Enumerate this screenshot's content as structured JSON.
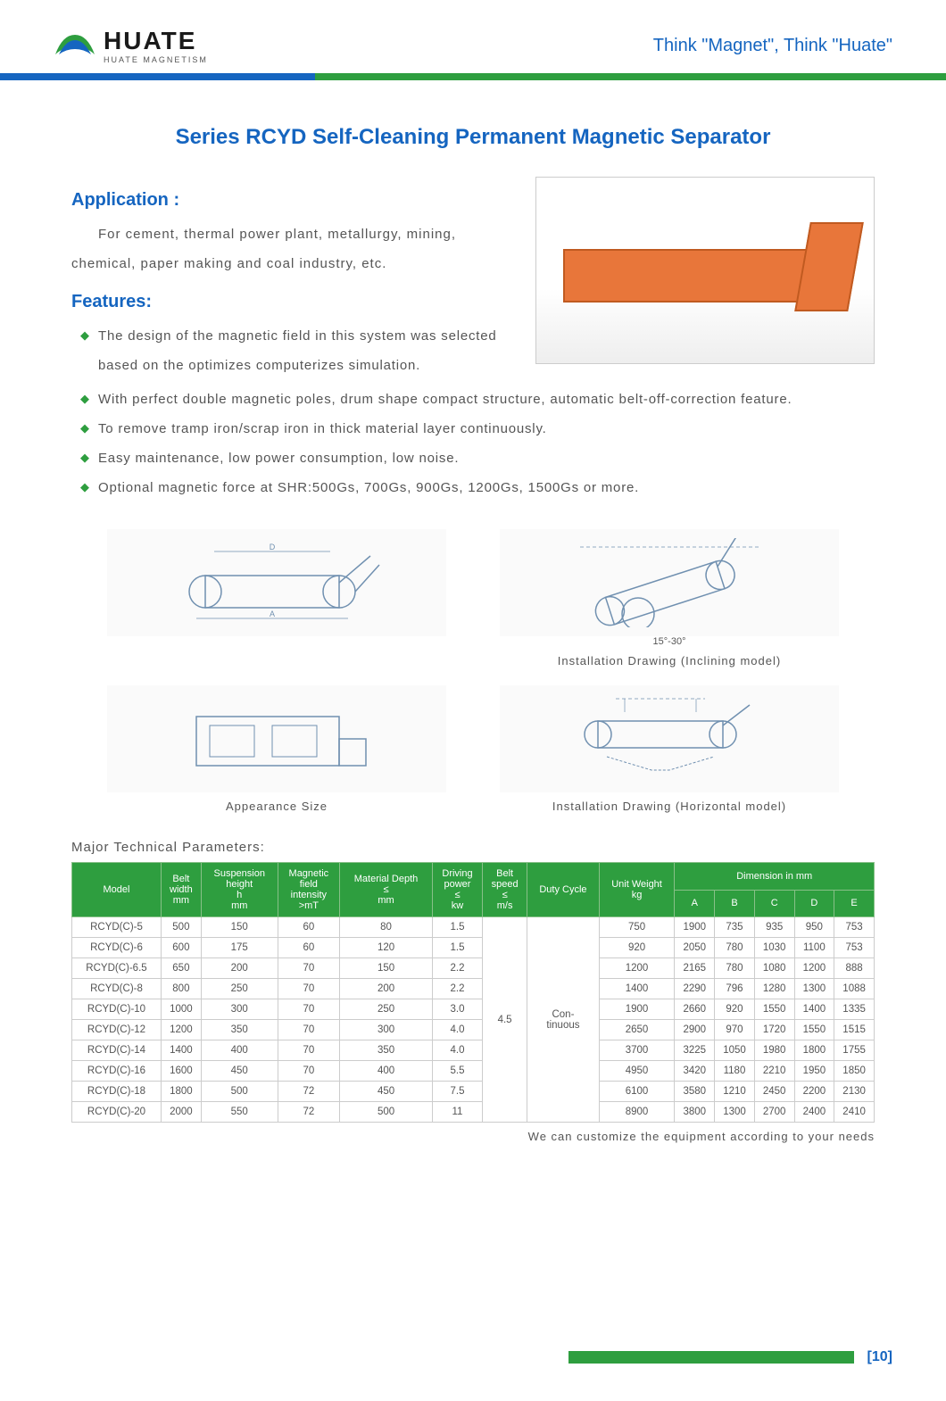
{
  "header": {
    "logo_main": "HUATE",
    "logo_sub": "HUATE MAGNETISM",
    "slogan_prefix": "Think",
    "slogan_word1": "\"Magnet\"",
    "slogan_mid": ", Think",
    "slogan_word2": "\"Huate\"",
    "bar_blue_color": "#1565c0",
    "bar_green_color": "#2e9e3f"
  },
  "page_title": "Series RCYD Self-Cleaning Permanent Magnetic Separator",
  "sections": {
    "application": {
      "heading": "Application :",
      "text": "For cement, thermal power plant, metallurgy, mining, chemical, paper making and coal industry, etc."
    },
    "features": {
      "heading": "Features:",
      "items": [
        "The design of the magnetic field in this system was selected based on the optimizes computerizes simulation.",
        "With perfect double magnetic poles, drum shape compact structure, automatic belt-off-correction feature.",
        "To remove tramp iron/scrap iron in thick material layer continuously.",
        "Easy maintenance, low power consumption, low noise.",
        "Optional magnetic force at SHR:500Gs, 700Gs, 900Gs, 1200Gs, 1500Gs or more."
      ]
    }
  },
  "diagrams": {
    "d1_caption": "",
    "d2_angle": "15°-30°",
    "d2_caption": "Installation Drawing (Inclining model)",
    "d3_caption": "Appearance Size",
    "d4_caption": "Installation Drawing (Horizontal model)"
  },
  "table": {
    "title": "Major Technical Parameters:",
    "header_bg": "#2e9e3f",
    "columns_top": [
      "Model",
      "Belt width mm",
      "Suspension height h mm",
      "Magnetic field intensity >mT",
      "Material Depth ≤ mm",
      "Driving power ≤ kw",
      "Belt speed ≤ m/s",
      "Duty Cycle",
      "Unit Weight kg",
      "Dimension in mm"
    ],
    "dim_cols": [
      "A",
      "B",
      "C",
      "D",
      "E"
    ],
    "merged_belt_speed": "4.5",
    "merged_duty": "Con-\ntinuous",
    "rows": [
      {
        "model": "RCYD(C)-5",
        "bw": "500",
        "sh": "150",
        "mfi": "60",
        "md": "80",
        "dp": "1.5",
        "uw": "750",
        "A": "1900",
        "B": "735",
        "C": "935",
        "D": "950",
        "E": "753"
      },
      {
        "model": "RCYD(C)-6",
        "bw": "600",
        "sh": "175",
        "mfi": "60",
        "md": "120",
        "dp": "1.5",
        "uw": "920",
        "A": "2050",
        "B": "780",
        "C": "1030",
        "D": "1100",
        "E": "753"
      },
      {
        "model": "RCYD(C)-6.5",
        "bw": "650",
        "sh": "200",
        "mfi": "70",
        "md": "150",
        "dp": "2.2",
        "uw": "1200",
        "A": "2165",
        "B": "780",
        "C": "1080",
        "D": "1200",
        "E": "888"
      },
      {
        "model": "RCYD(C)-8",
        "bw": "800",
        "sh": "250",
        "mfi": "70",
        "md": "200",
        "dp": "2.2",
        "uw": "1400",
        "A": "2290",
        "B": "796",
        "C": "1280",
        "D": "1300",
        "E": "1088"
      },
      {
        "model": "RCYD(C)-10",
        "bw": "1000",
        "sh": "300",
        "mfi": "70",
        "md": "250",
        "dp": "3.0",
        "uw": "1900",
        "A": "2660",
        "B": "920",
        "C": "1550",
        "D": "1400",
        "E": "1335"
      },
      {
        "model": "RCYD(C)-12",
        "bw": "1200",
        "sh": "350",
        "mfi": "70",
        "md": "300",
        "dp": "4.0",
        "uw": "2650",
        "A": "2900",
        "B": "970",
        "C": "1720",
        "D": "1550",
        "E": "1515"
      },
      {
        "model": "RCYD(C)-14",
        "bw": "1400",
        "sh": "400",
        "mfi": "70",
        "md": "350",
        "dp": "4.0",
        "uw": "3700",
        "A": "3225",
        "B": "1050",
        "C": "1980",
        "D": "1800",
        "E": "1755"
      },
      {
        "model": "RCYD(C)-16",
        "bw": "1600",
        "sh": "450",
        "mfi": "70",
        "md": "400",
        "dp": "5.5",
        "uw": "4950",
        "A": "3420",
        "B": "1180",
        "C": "2210",
        "D": "1950",
        "E": "1850"
      },
      {
        "model": "RCYD(C)-18",
        "bw": "1800",
        "sh": "500",
        "mfi": "72",
        "md": "450",
        "dp": "7.5",
        "uw": "6100",
        "A": "3580",
        "B": "1210",
        "C": "2450",
        "D": "2200",
        "E": "2130"
      },
      {
        "model": "RCYD(C)-20",
        "bw": "2000",
        "sh": "550",
        "mfi": "72",
        "md": "500",
        "dp": "11",
        "uw": "8900",
        "A": "3800",
        "B": "1300",
        "C": "2700",
        "D": "2400",
        "E": "2410"
      }
    ],
    "footnote": "We can customize the equipment according to your needs"
  },
  "page_number": "[10]"
}
